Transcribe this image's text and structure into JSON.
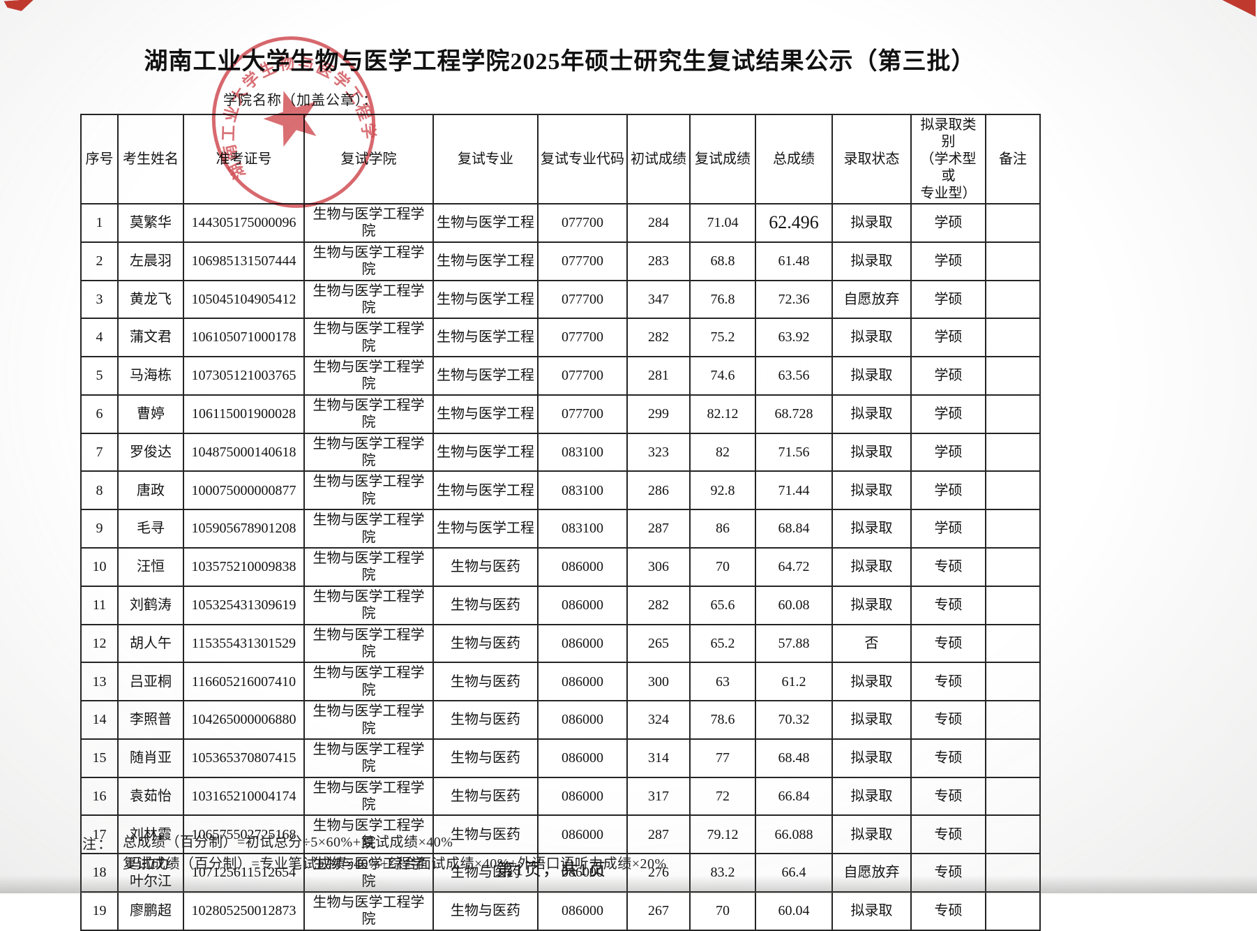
{
  "page": {
    "title": "湖南工业大学生物与医学工程学院2025年硕士研究生复试结果公示（第三批）",
    "subtitle": "学院名称（加盖公章）：",
    "page_footer": "第1页，共1页"
  },
  "seal": {
    "text": "湖南工业大学生物与医学工程学院",
    "color": "#c9343b"
  },
  "notes": {
    "label": "注：",
    "lines": [
      "总成绩（百分制）=初试总分÷5×60%+复试成绩×40%",
      "复试成绩（百分制）=专业笔试成绩×40%+综合面试成绩×40%+外语口语听力成绩×20%"
    ]
  },
  "table": {
    "headers": [
      "序号",
      "考生姓名",
      "准考证号",
      "复试学院",
      "复试专业",
      "复试专业代码",
      "初试成绩",
      "复试成绩",
      "总成绩",
      "录取状态",
      "拟录取类别\n（学术型或\n专业型）",
      "备注"
    ],
    "column_keys": [
      "index",
      "name",
      "ticket-no",
      "college",
      "major",
      "major-code",
      "initial-score",
      "retest-score",
      "total-score",
      "admission-status",
      "category",
      "remark"
    ],
    "rows": [
      [
        "1",
        "莫繁华",
        "144305175000096",
        "生物与医学工程学院",
        "生物与医学工程",
        "077700",
        "284",
        "71.04",
        "62.496",
        "拟录取",
        "学硕",
        ""
      ],
      [
        "2",
        "左晨羽",
        "106985131507444",
        "生物与医学工程学院",
        "生物与医学工程",
        "077700",
        "283",
        "68.8",
        "61.48",
        "拟录取",
        "学硕",
        ""
      ],
      [
        "3",
        "黄龙飞",
        "105045104905412",
        "生物与医学工程学院",
        "生物与医学工程",
        "077700",
        "347",
        "76.8",
        "72.36",
        "自愿放弃",
        "学硕",
        ""
      ],
      [
        "4",
        "蒲文君",
        "106105071000178",
        "生物与医学工程学院",
        "生物与医学工程",
        "077700",
        "282",
        "75.2",
        "63.92",
        "拟录取",
        "学硕",
        ""
      ],
      [
        "5",
        "马海栋",
        "107305121003765",
        "生物与医学工程学院",
        "生物与医学工程",
        "077700",
        "281",
        "74.6",
        "63.56",
        "拟录取",
        "学硕",
        ""
      ],
      [
        "6",
        "曹婷",
        "106115001900028",
        "生物与医学工程学院",
        "生物与医学工程",
        "077700",
        "299",
        "82.12",
        "68.728",
        "拟录取",
        "学硕",
        ""
      ],
      [
        "7",
        "罗俊达",
        "104875000140618",
        "生物与医学工程学院",
        "生物与医学工程",
        "083100",
        "323",
        "82",
        "71.56",
        "拟录取",
        "学硕",
        ""
      ],
      [
        "8",
        "唐政",
        "100075000000877",
        "生物与医学工程学院",
        "生物与医学工程",
        "083100",
        "286",
        "92.8",
        "71.44",
        "拟录取",
        "学硕",
        ""
      ],
      [
        "9",
        "毛寻",
        "105905678901208",
        "生物与医学工程学院",
        "生物与医学工程",
        "083100",
        "287",
        "86",
        "68.84",
        "拟录取",
        "学硕",
        ""
      ],
      [
        "10",
        "汪恒",
        "103575210009838",
        "生物与医学工程学院",
        "生物与医药",
        "086000",
        "306",
        "70",
        "64.72",
        "拟录取",
        "专硕",
        ""
      ],
      [
        "11",
        "刘鹤涛",
        "105325431309619",
        "生物与医学工程学院",
        "生物与医药",
        "086000",
        "282",
        "65.6",
        "60.08",
        "拟录取",
        "专硕",
        ""
      ],
      [
        "12",
        "胡人午",
        "115355431301529",
        "生物与医学工程学院",
        "生物与医药",
        "086000",
        "265",
        "65.2",
        "57.88",
        "否",
        "专硕",
        ""
      ],
      [
        "13",
        "吕亚桐",
        "116605216007410",
        "生物与医学工程学院",
        "生物与医药",
        "086000",
        "300",
        "63",
        "61.2",
        "拟录取",
        "专硕",
        ""
      ],
      [
        "14",
        "李照普",
        "104265000006880",
        "生物与医学工程学院",
        "生物与医药",
        "086000",
        "324",
        "78.6",
        "70.32",
        "拟录取",
        "专硕",
        ""
      ],
      [
        "15",
        "随肖亚",
        "105365370807415",
        "生物与医学工程学院",
        "生物与医药",
        "086000",
        "314",
        "77",
        "68.48",
        "拟录取",
        "专硕",
        ""
      ],
      [
        "16",
        "袁茹怡",
        "103165210004174",
        "生物与医学工程学院",
        "生物与医药",
        "086000",
        "317",
        "72",
        "66.84",
        "拟录取",
        "专硕",
        ""
      ],
      [
        "17",
        "刘林霞",
        "106575502725168",
        "生物与医学工程学院",
        "生物与医药",
        "086000",
        "287",
        "79.12",
        "66.088",
        "拟录取",
        "专硕",
        ""
      ],
      [
        "18",
        "玛拉力·叶尔江",
        "107125611512654",
        "生物与医学工程学院",
        "生物与医药",
        "086000",
        "276",
        "83.2",
        "66.4",
        "自愿放弃",
        "专硕",
        ""
      ],
      [
        "19",
        "廖鹏超",
        "102805250012873",
        "生物与医学工程学院",
        "生物与医药",
        "086000",
        "267",
        "70",
        "60.04",
        "拟录取",
        "专硕",
        ""
      ]
    ]
  }
}
